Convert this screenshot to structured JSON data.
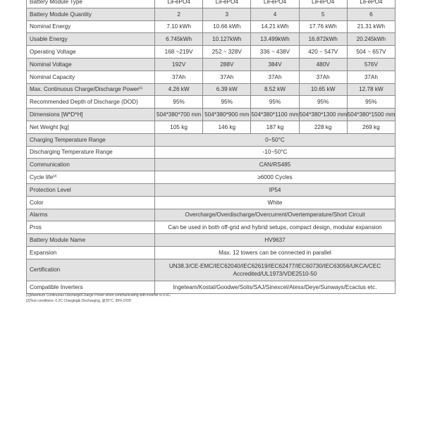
{
  "rows": [
    {
      "label": "Battery Module Type",
      "values": [
        "LiFePO4",
        "LiFePO4",
        "LiFePO4",
        "LiFePO4",
        "LiFePO4"
      ]
    },
    {
      "label": "Battery Module Quantity",
      "values": [
        "2",
        "3",
        "4",
        "5",
        "6"
      ]
    },
    {
      "label": "Nominal Energy",
      "values": [
        "7.10 kWh",
        "10.66 kWh",
        "14.21 kWh",
        "17.76 kWh",
        "21.31 kWh"
      ]
    },
    {
      "label": "Usable Energy",
      "values": [
        "6.745kWh",
        "10.127kWh",
        "13.499kWh",
        "16.872kWh",
        "20.245kWh"
      ]
    },
    {
      "label": "Operating Voltage",
      "values": [
        "168 ~219V",
        "252 ~ 328V",
        "336 ~ 438V",
        "420 ~ 547V",
        "504 ~ 657V"
      ]
    },
    {
      "label": "Nominal Voltage",
      "values": [
        "192V",
        "288V",
        "384V",
        "480V",
        "576V"
      ]
    },
    {
      "label": "Nominal Capacity",
      "values": [
        "37Ah",
        "37Ah",
        "37Ah",
        "37Ah",
        "37Ah"
      ]
    },
    {
      "label": "Max. Continuous Charge/Discharge Power",
      "sup": "[1]",
      "values": [
        "4.26 kW",
        "6.39 kW",
        "8.52 kW",
        "10.65 kW",
        "12.78 kW"
      ]
    },
    {
      "label": "Recommended Depth of Discharge (DOD)",
      "values": [
        "95%",
        "95%",
        "95%",
        "95%",
        "95%"
      ]
    },
    {
      "label": "Dimensions [W*D*H]",
      "values": [
        "504*380*700 mm",
        "504*380*900 mm",
        "504*380*1100 mm",
        "504*380*1300 mm",
        "504*380*1500 mm"
      ]
    },
    {
      "label": "Net Weight [kg]",
      "values": [
        "105 kg",
        "146 kg",
        "187 kg",
        "228 kg",
        "269 kg"
      ]
    },
    {
      "label": "Charging Temperature Range",
      "value": "0~50°C"
    },
    {
      "label": "Discharging Temperature Range",
      "value": "-10~50°C"
    },
    {
      "label": "Communication",
      "value": "CAN/RS485"
    },
    {
      "label": "Cycle life",
      "sup": "[2]",
      "value": "≥6000 Cycles"
    },
    {
      "label": "Protection Level",
      "value": "IP54"
    },
    {
      "label": "Color",
      "value": "White"
    },
    {
      "label": "Alarms",
      "value": "Overcharge/Overdischarge/Overcurrent/Overtemperature/Short Circuit"
    },
    {
      "label": "Pros",
      "value": "Can be used in both off-grid and hybrid setups, compact design, modular expansion"
    },
    {
      "label": "Battery Module Name",
      "value": "HV9637"
    },
    {
      "label": "Expansion",
      "value": "Max. 12 towers can be connected in parallel"
    },
    {
      "label": "Certification",
      "value": "UN38.3/CE-EMC/IEC62040/IEC62619/IEC62477/IEC60730/IEC63056/UKCA/CEC Accredited/UL1973/VDE2510-50",
      "tall": true
    },
    {
      "label": "Compatible Inverters",
      "value": "Ingeteam/Kostal/Goodwe/Solis/SAJ/Sinexcel/Atess/Deye/Sunways/Ecactus etc."
    }
  ],
  "footnotes": [
    "[1]Maximum Continuous Discharge/Charge Power when communicating with inverter is 0.6C",
    "[2]Test conditions: 0.2C Charging& Discharging, @25°C, 95% DOD"
  ],
  "colors": {
    "shaded_row": "#e2e2e2",
    "border": "#8a8a8a"
  }
}
